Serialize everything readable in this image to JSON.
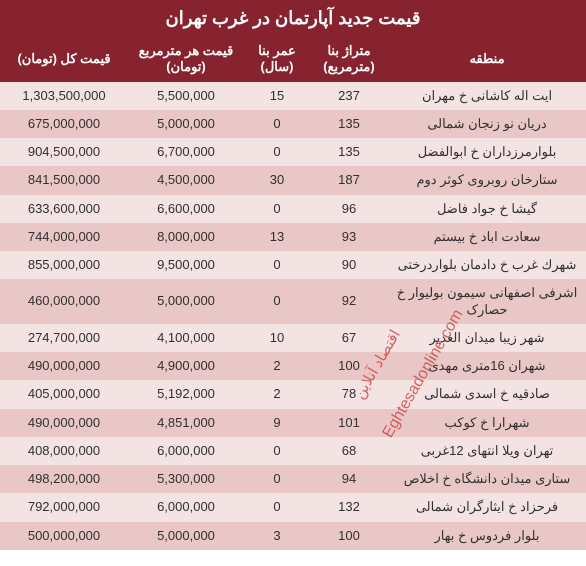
{
  "title": "قیمت جدید آپارتمان در غرب تهران",
  "headers": {
    "region": "منطقه",
    "area": "متراژ بنا (مترمربع)",
    "age": "عمر بنا (سال)",
    "ppm": "قیمت هر مترمربع (تومان)",
    "total": "قیمت کل (تومان)"
  },
  "rows": [
    {
      "region": "ایت اله کاشانی خ مهران",
      "area": "237",
      "age": "15",
      "ppm": "5,500,000",
      "total": "1,303,500,000"
    },
    {
      "region": "دریان نو زنجان شمالی",
      "area": "135",
      "age": "0",
      "ppm": "5,000,000",
      "total": "675,000,000"
    },
    {
      "region": "بلوارمرزداران خ ابوالفضل",
      "area": "135",
      "age": "0",
      "ppm": "6,700,000",
      "total": "904,500,000"
    },
    {
      "region": "ستارخان روبروی کوثر دوم",
      "area": "187",
      "age": "30",
      "ppm": "4,500,000",
      "total": "841,500,000"
    },
    {
      "region": "گیشا خ جواد فاضل",
      "area": "96",
      "age": "0",
      "ppm": "6,600,000",
      "total": "633,600,000"
    },
    {
      "region": "سعادت اباد خ بیستم",
      "area": "93",
      "age": "13",
      "ppm": "8,000,000",
      "total": "744,000,000"
    },
    {
      "region": "شهرك غرب خ دادمان بلواردرختی",
      "area": "90",
      "age": "0",
      "ppm": "9,500,000",
      "total": "855,000,000"
    },
    {
      "region": "اشرفی اصفهانی سیمون بولیوار خ حصارک",
      "area": "92",
      "age": "0",
      "ppm": "5,000,000",
      "total": "460,000,000"
    },
    {
      "region": "شهر زیبا میدان الغدیر",
      "area": "67",
      "age": "10",
      "ppm": "4,100,000",
      "total": "274,700,000"
    },
    {
      "region": "شهران 16متری مهدی",
      "area": "100",
      "age": "2",
      "ppm": "4,900,000",
      "total": "490,000,000"
    },
    {
      "region": "صادقیه خ اسدی شمالی",
      "area": "78",
      "age": "2",
      "ppm": "5,192,000",
      "total": "405,000,000"
    },
    {
      "region": "شهرارا خ کوکب",
      "area": "101",
      "age": "9",
      "ppm": "4,851,000",
      "total": "490,000,000"
    },
    {
      "region": "تهران ویلا انتهای 12غربی",
      "area": "68",
      "age": "0",
      "ppm": "6,000,000",
      "total": "408,000,000"
    },
    {
      "region": "ستاری میدان دانشگاه خ اخلاص",
      "area": "94",
      "age": "0",
      "ppm": "5,300,000",
      "total": "498,200,000"
    },
    {
      "region": "فرحزاد خ ایثارگران شمالی",
      "area": "132",
      "age": "0",
      "ppm": "6,000,000",
      "total": "792,000,000"
    },
    {
      "region": "بلوار فردوس خ بهار",
      "area": "100",
      "age": "3",
      "ppm": "5,000,000",
      "total": "500,000,000"
    }
  ],
  "colors": {
    "header_bg": "#87232e",
    "header_fg": "#ffffff",
    "row_even": "#f4e3e3",
    "row_odd": "#e8c7c6",
    "text": "#303030",
    "watermark": "#cc4b4b"
  },
  "watermark": {
    "latin": "Eghtesadonline.com",
    "fa": "اقتصاد آنلاین"
  }
}
